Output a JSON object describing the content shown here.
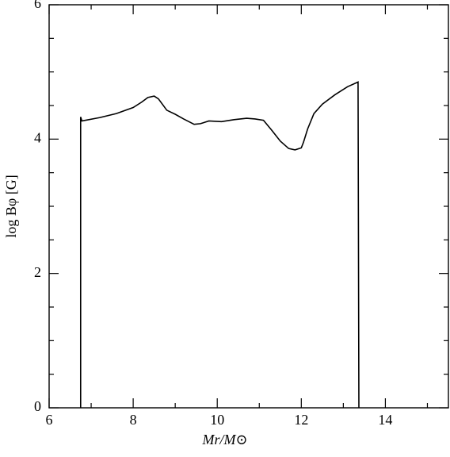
{
  "chart_data": {
    "type": "line",
    "xlabel": "Mr/M⊙",
    "ylabel": "log Bφ [G]",
    "x": [
      6.75,
      6.75,
      6.78,
      7.2,
      7.6,
      8.0,
      8.2,
      8.35,
      8.5,
      8.6,
      8.8,
      9.0,
      9.2,
      9.45,
      9.6,
      9.8,
      10.1,
      10.4,
      10.7,
      10.9,
      11.1,
      11.3,
      11.5,
      11.7,
      11.85,
      12.0,
      12.05,
      12.15,
      12.3,
      12.5,
      12.8,
      13.1,
      13.35,
      13.37
    ],
    "series": [
      {
        "color": "#000000",
        "values": [
          0,
          4.33,
          4.27,
          4.32,
          4.38,
          4.47,
          4.55,
          4.62,
          4.64,
          4.6,
          4.43,
          4.37,
          4.3,
          4.22,
          4.23,
          4.27,
          4.26,
          4.29,
          4.31,
          4.3,
          4.28,
          4.13,
          3.97,
          3.86,
          3.84,
          3.87,
          3.95,
          4.15,
          4.38,
          4.52,
          4.66,
          4.78,
          4.85,
          0
        ]
      }
    ],
    "xlim": [
      6,
      15.5
    ],
    "ylim": [
      0,
      6
    ],
    "xticks": [
      6,
      8,
      10,
      12,
      14
    ],
    "yticks": [
      0,
      2,
      4,
      6
    ],
    "xminor": [
      7,
      9,
      11,
      13,
      15
    ],
    "yminor": [
      0.5,
      1,
      1.5,
      2.5,
      3,
      3.5,
      4.5,
      5,
      5.5
    ]
  }
}
